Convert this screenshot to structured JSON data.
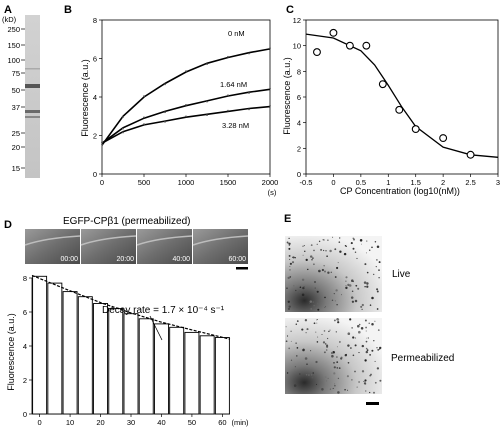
{
  "panels": {
    "a": "A",
    "b": "B",
    "c": "C",
    "d": "D",
    "e": "E"
  },
  "panel_a": {
    "unit": "(kD)",
    "markers": [
      "250",
      "150",
      "100",
      "75",
      "50",
      "37",
      "25",
      "20",
      "15"
    ]
  },
  "panel_d": {
    "title": "EGFP-CPβ1 (permeabilized)",
    "frame_times": [
      "00:00",
      "20:00",
      "40:00",
      "60:00"
    ]
  },
  "panel_e": {
    "labels": [
      "Live",
      "Permeabilized"
    ]
  },
  "chart_data": [
    {
      "type": "line",
      "panel": "B",
      "xlabel": "(s)",
      "ylabel": "Fluorescence (a.u.)",
      "xlim": [
        0,
        2000
      ],
      "ylim": [
        0,
        8
      ],
      "xticks": [
        "0",
        "500",
        "1000",
        "1500",
        "2000"
      ],
      "yticks": [
        "0",
        "2",
        "4",
        "6",
        "8"
      ],
      "series": [
        {
          "name": "0 nM",
          "x": [
            0,
            250,
            500,
            750,
            1000,
            1250,
            1500,
            1750,
            2000
          ],
          "values": [
            1.5,
            3.0,
            4.0,
            4.7,
            5.3,
            5.75,
            6.05,
            6.3,
            6.5
          ]
        },
        {
          "name": "1.64 nM",
          "x": [
            0,
            250,
            500,
            750,
            1000,
            1250,
            1500,
            1750,
            2000
          ],
          "values": [
            1.6,
            2.4,
            2.9,
            3.25,
            3.55,
            3.8,
            4.05,
            4.25,
            4.4
          ]
        },
        {
          "name": "3.28 nM",
          "x": [
            0,
            250,
            500,
            750,
            1000,
            1250,
            1500,
            1750,
            2000
          ],
          "values": [
            1.6,
            2.2,
            2.55,
            2.75,
            2.95,
            3.1,
            3.25,
            3.4,
            3.5
          ]
        }
      ]
    },
    {
      "type": "scatter",
      "panel": "C",
      "xlabel": "CP Concentration (log10(nM))",
      "ylabel": "Fluorescence (a.u.)",
      "xlim": [
        -0.5,
        3
      ],
      "ylim": [
        0,
        12
      ],
      "xticks": [
        "-0.5",
        "0",
        "0.5",
        "1",
        "1.5",
        "2",
        "2.5",
        "3"
      ],
      "yticks": [
        "0",
        "2",
        "4",
        "6",
        "8",
        "10",
        "12"
      ],
      "points": {
        "x": [
          -0.3,
          0,
          0.3,
          0.6,
          0.9,
          1.2,
          1.5,
          2,
          2.5
        ],
        "values": [
          9.5,
          11.0,
          10.0,
          10.0,
          7.0,
          5.0,
          3.5,
          2.8,
          1.5
        ]
      },
      "fit": {
        "x": [
          -0.5,
          0,
          0.5,
          0.75,
          1,
          1.25,
          1.5,
          2,
          2.5,
          3
        ],
        "values": [
          10.9,
          10.6,
          9.6,
          8.5,
          6.9,
          5.2,
          3.7,
          2.1,
          1.5,
          1.3
        ]
      }
    },
    {
      "type": "bar",
      "panel": "D",
      "xlabel": "(min)",
      "ylabel": "Fluorescence (a.u.)",
      "ylim": [
        0,
        8
      ],
      "xlim": [
        -2.5,
        62.5
      ],
      "xticks": [
        "0",
        "10",
        "20",
        "30",
        "40",
        "50",
        "60"
      ],
      "yticks": [
        "0",
        "2",
        "4",
        "6",
        "8"
      ],
      "x": [
        0,
        5,
        10,
        15,
        20,
        25,
        30,
        35,
        40,
        45,
        50,
        55,
        60
      ],
      "values": [
        8.1,
        7.7,
        7.2,
        6.9,
        6.5,
        6.2,
        5.9,
        5.6,
        5.3,
        5.1,
        4.8,
        4.6,
        4.5
      ],
      "fit": {
        "x": [
          -2.5,
          10,
          20,
          30,
          40,
          50,
          62.5
        ],
        "values": [
          8.15,
          7.25,
          6.55,
          5.95,
          5.4,
          4.95,
          4.4
        ]
      },
      "annotation": "Decay rate = 1.7 × 10⁻⁴ s⁻¹"
    }
  ]
}
